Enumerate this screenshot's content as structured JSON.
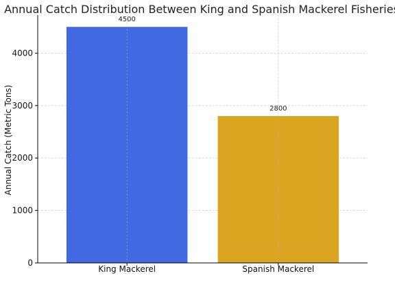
{
  "chart_data": {
    "type": "bar",
    "title": "Annual Catch Distribution Between King and Spanish Mackerel Fisheries",
    "xlabel": "",
    "ylabel": "Annual Catch (Metric Tons)",
    "categories": [
      "King Mackerel",
      "Spanish Mackerel"
    ],
    "values": [
      4500,
      2800
    ],
    "data_labels": [
      "4500",
      "2800"
    ],
    "colors": [
      "#4169E1",
      "#DAA520"
    ],
    "ylim": [
      0,
      4725
    ],
    "yticks": [
      0,
      1000,
      2000,
      3000,
      4000
    ],
    "ytick_labels": [
      "0",
      "1000",
      "2000",
      "3000",
      "4000"
    ],
    "grid": true,
    "legend": "none"
  }
}
